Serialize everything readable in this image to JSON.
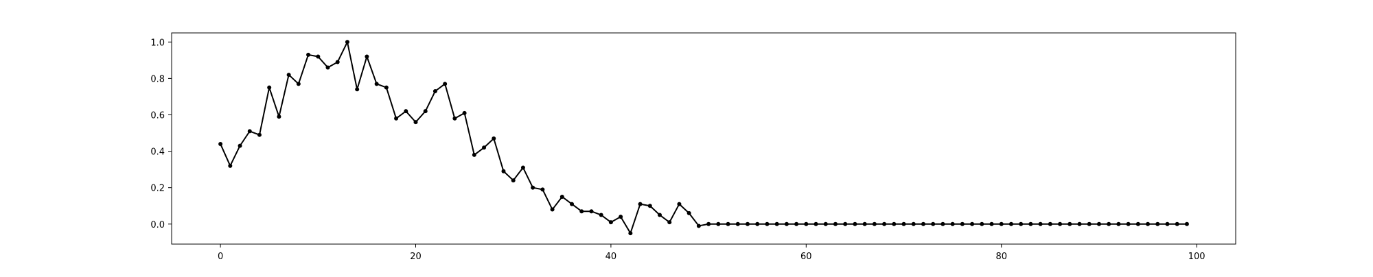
{
  "chart_data": {
    "type": "line",
    "title": "",
    "xlabel": "",
    "ylabel": "",
    "xlim": [
      -5,
      104
    ],
    "ylim": [
      -0.11,
      1.05
    ],
    "grid": false,
    "legend": "none",
    "line_color": "#000000",
    "marker": "dot",
    "x_ticks": [
      0,
      20,
      40,
      60,
      80,
      100
    ],
    "x_tick_labels": [
      "0",
      "20",
      "40",
      "60",
      "80",
      "100"
    ],
    "y_ticks": [
      0.0,
      0.2,
      0.4,
      0.6,
      0.8,
      1.0
    ],
    "y_tick_labels": [
      "0.0",
      "0.2",
      "0.4",
      "0.6",
      "0.8",
      "1.0"
    ],
    "series": [
      {
        "x": [
          0,
          1,
          2,
          3,
          4,
          5,
          6,
          7,
          8,
          9,
          10,
          11,
          12,
          13,
          14,
          15,
          16,
          17,
          18,
          19,
          20,
          21,
          22,
          23,
          24,
          25,
          26,
          27,
          28,
          29,
          30,
          31,
          32,
          33,
          34,
          35,
          36,
          37,
          38,
          39,
          40,
          41,
          42,
          43,
          44,
          45,
          46,
          47,
          48,
          49,
          50,
          51,
          52,
          53,
          54,
          55,
          56,
          57,
          58,
          59,
          60,
          61,
          62,
          63,
          64,
          65,
          66,
          67,
          68,
          69,
          70,
          71,
          72,
          73,
          74,
          75,
          76,
          77,
          78,
          79,
          80,
          81,
          82,
          83,
          84,
          85,
          86,
          87,
          88,
          89,
          90,
          91,
          92,
          93,
          94,
          95,
          96,
          97,
          98,
          99
        ],
        "values": [
          0.44,
          0.32,
          0.43,
          0.51,
          0.49,
          0.75,
          0.59,
          0.82,
          0.77,
          0.93,
          0.92,
          0.86,
          0.89,
          1.0,
          0.74,
          0.92,
          0.77,
          0.75,
          0.58,
          0.62,
          0.56,
          0.62,
          0.73,
          0.77,
          0.58,
          0.61,
          0.38,
          0.42,
          0.47,
          0.29,
          0.24,
          0.31,
          0.2,
          0.19,
          0.08,
          0.15,
          0.11,
          0.07,
          0.07,
          0.05,
          0.01,
          0.04,
          -0.05,
          0.11,
          0.1,
          0.05,
          0.01,
          0.11,
          0.06,
          -0.01,
          0.0,
          0.0,
          0.0,
          0.0,
          0.0,
          0.0,
          0.0,
          0.0,
          0.0,
          0.0,
          0.0,
          0.0,
          0.0,
          0.0,
          0.0,
          0.0,
          0.0,
          0.0,
          0.0,
          0.0,
          0.0,
          0.0,
          0.0,
          0.0,
          0.0,
          0.0,
          0.0,
          0.0,
          0.0,
          0.0,
          0.0,
          0.0,
          0.0,
          0.0,
          0.0,
          0.0,
          0.0,
          0.0,
          0.0,
          0.0,
          0.0,
          0.0,
          0.0,
          0.0,
          0.0,
          0.0,
          0.0,
          0.0,
          0.0,
          0.0
        ]
      }
    ]
  }
}
